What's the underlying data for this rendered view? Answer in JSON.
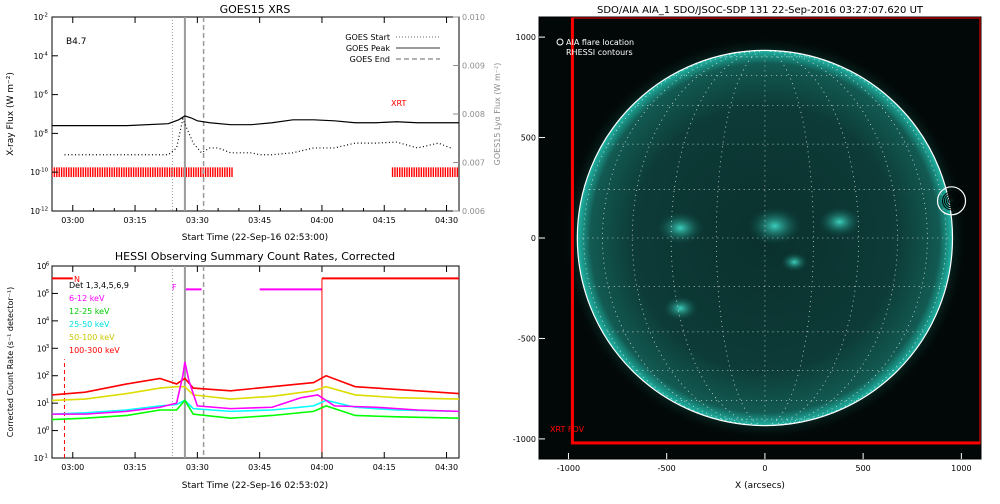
{
  "colors": {
    "goes_flux": "#000000",
    "xrt": "#ff0000",
    "lyman_alpha": "#000000",
    "event_lines": "#9a9a9a",
    "xrt_fov": "#ff0000",
    "disk_limb": "#ffffff",
    "aia_base": "#020807",
    "aia_glow": "#0fb0a0",
    "band_6_12": "#ff00ff",
    "band_12_25": "#00ff00",
    "band_25_50": "#00ffff",
    "band_50_100": "#dddd00",
    "band_100_300": "#ff0000"
  },
  "chart_data": [
    {
      "type": "line",
      "title": "GOES15 XRS",
      "xlabel": "Start Time (22-Sep-16 02:53:00)",
      "ylabel": "X-ray Flux (W m⁻²)",
      "y2label": "GOES15 Lyα Flux (W m⁻²)",
      "annotation": "B4.7",
      "xrt_label": "XRT",
      "x_ticks": [
        "03:00",
        "03:15",
        "03:30",
        "03:45",
        "04:00",
        "04:15",
        "04:30"
      ],
      "x_tick_minutes": [
        7,
        22,
        37,
        52,
        67,
        82,
        97
      ],
      "x_range_min": [
        2,
        100
      ],
      "y_scale": "log",
      "y_range_exp": [
        -12,
        -2
      ],
      "y_ticks_exp": [
        -12,
        -10,
        -8,
        -6,
        -4,
        -2
      ],
      "y_tick_labels": [
        "10",
        "10",
        "10",
        "10",
        "10",
        "10"
      ],
      "y_tick_sups": [
        "-12",
        "-10",
        "-8",
        "-6",
        "-4",
        "-2"
      ],
      "y2_range": [
        0.006,
        0.01
      ],
      "y2_ticks": [
        "0.006",
        "0.007",
        "0.008",
        "0.009",
        "0.010"
      ],
      "legend": [
        "GOES Start",
        "GOES Peak",
        "GOES End"
      ],
      "events_min": {
        "start": 31,
        "peak": 34,
        "end": 38.5
      },
      "series": [
        {
          "name": "",
          "style": "solid",
          "x": [
            2,
            10,
            20,
            30,
            32.5,
            34,
            35.5,
            37,
            40,
            45,
            50,
            55,
            60,
            65,
            70,
            75,
            80,
            85,
            90,
            95,
            100
          ],
          "y_exp": [
            -7.6,
            -7.6,
            -7.6,
            -7.5,
            -7.3,
            -7.1,
            -7.2,
            -7.35,
            -7.45,
            -7.55,
            -7.55,
            -7.45,
            -7.3,
            -7.3,
            -7.35,
            -7.45,
            -7.45,
            -7.4,
            -7.45,
            -7.45,
            -7.45
          ]
        },
        {
          "name": "",
          "style": "dotted",
          "x": [
            5,
            10,
            20,
            30,
            32,
            33.5,
            34.5,
            36,
            38,
            40,
            42,
            45,
            50,
            52,
            55,
            60,
            65,
            70,
            75,
            80,
            85,
            90,
            95,
            98
          ],
          "y2": [
            0.00716,
            0.00716,
            0.00716,
            0.00716,
            0.0073,
            0.0079,
            0.0077,
            0.0074,
            0.0072,
            0.0073,
            0.0073,
            0.0072,
            0.0072,
            0.00716,
            0.00716,
            0.0072,
            0.0073,
            0.0073,
            0.0074,
            0.0074,
            0.00742,
            0.0073,
            0.0074,
            0.0073
          ]
        }
      ],
      "xrt_coverage_min": [
        [
          2,
          46
        ],
        [
          84,
          100
        ]
      ]
    },
    {
      "type": "line",
      "title": "HESSI Observing Summary Count Rates, Corrected",
      "xlabel": "Start Time (22-Sep-16 02:53:02)",
      "ylabel": "Corrected Count Rate (s⁻¹ detector⁻¹)",
      "x_ticks": [
        "03:00",
        "03:15",
        "03:30",
        "03:45",
        "04:00",
        "04:15",
        "04:30"
      ],
      "x_tick_minutes": [
        7,
        22,
        37,
        52,
        67,
        82,
        97
      ],
      "x_range_min": [
        2,
        100
      ],
      "y_scale": "log",
      "y_range_exp": [
        -1,
        6
      ],
      "y_ticks_exp": [
        -1,
        0,
        1,
        2,
        3,
        4,
        5,
        6
      ],
      "y_tick_labels": [
        "10",
        "10",
        "10",
        "10",
        "10",
        "10",
        "10",
        "10"
      ],
      "y_tick_sups": [
        "-1",
        "0",
        "1",
        "2",
        "3",
        "4",
        "5",
        "6"
      ],
      "events_min": {
        "start": 31,
        "peak": 34,
        "end": 38.5
      },
      "legend_title": "Det 1,3,4,5,6,9",
      "flag_n": "N",
      "flag_f": "F",
      "series": [
        {
          "name": "6-12 keV",
          "color": "#ff00ff",
          "x": [
            2,
            10,
            20,
            28,
            32,
            33.5,
            34,
            35,
            37,
            45,
            55,
            62,
            66,
            70,
            80,
            90,
            100
          ],
          "y_exp": [
            0.6,
            0.6,
            0.7,
            0.85,
            1.0,
            2.0,
            2.5,
            1.8,
            0.9,
            0.8,
            0.85,
            1.2,
            1.3,
            0.9,
            0.85,
            0.75,
            0.7
          ]
        },
        {
          "name": "12-25 keV",
          "color": "#00ff00",
          "x": [
            2,
            10,
            20,
            28,
            32,
            34,
            36,
            45,
            55,
            65,
            68,
            75,
            85,
            100
          ],
          "y_exp": [
            0.4,
            0.45,
            0.55,
            0.75,
            0.75,
            1.1,
            0.6,
            0.45,
            0.55,
            0.7,
            0.9,
            0.55,
            0.5,
            0.45
          ]
        },
        {
          "name": "25-50 keV",
          "color": "#00ffff",
          "x": [
            2,
            10,
            20,
            28,
            32,
            34,
            36,
            45,
            55,
            65,
            68,
            75,
            85,
            100
          ],
          "y_exp": [
            0.6,
            0.65,
            0.75,
            0.9,
            0.95,
            1.1,
            0.8,
            0.7,
            0.75,
            0.9,
            1.1,
            0.85,
            0.75,
            0.7
          ]
        },
        {
          "name": "50-100 keV",
          "color": "#dddd00",
          "x": [
            2,
            10,
            20,
            28,
            32,
            34,
            36,
            45,
            55,
            65,
            68,
            75,
            85,
            100
          ],
          "y_exp": [
            1.1,
            1.15,
            1.35,
            1.55,
            1.6,
            1.6,
            1.3,
            1.15,
            1.25,
            1.45,
            1.6,
            1.3,
            1.2,
            1.15
          ]
        },
        {
          "name": "100-300 keV",
          "color": "#ff0000",
          "x": [
            2,
            10,
            20,
            28,
            32,
            34,
            36,
            45,
            55,
            65,
            68,
            75,
            85,
            100
          ],
          "y_exp": [
            1.3,
            1.4,
            1.7,
            1.9,
            1.7,
            1.9,
            1.55,
            1.45,
            1.6,
            1.75,
            2.0,
            1.6,
            1.5,
            1.35
          ]
        }
      ],
      "night_bar_min": [
        [
          67,
          100
        ]
      ],
      "flare_bars_min": [
        [
          34,
          38
        ],
        [
          52,
          67
        ]
      ],
      "markers_min": {
        "dashed_red": 5,
        "solid_red": 67
      }
    },
    {
      "type": "scatter",
      "title": "SDO/AIA AIA_1 SDO/JSOC-SDP 131 22-Sep-2016 03:27:07.620 UT",
      "xlabel": "X (arcsecs)",
      "ylabel": "",
      "xlim": [
        -1150,
        1100
      ],
      "ylim": [
        -1100,
        1100
      ],
      "x_ticks": [
        -1000,
        -500,
        0,
        500,
        1000
      ],
      "y_ticks": [
        -1000,
        -500,
        0,
        500,
        1000
      ],
      "solar_radius_arcsec": 955,
      "legend": [
        "AIA flare location",
        "RHESSI contours"
      ],
      "flare_location": {
        "x": 950,
        "y": 185
      },
      "xrt_fov_label": "XRT FOV",
      "xrt_fov_arcsec": {
        "x0": -980,
        "x1": 1100,
        "y0": -1020,
        "y1": 1100
      }
    }
  ]
}
